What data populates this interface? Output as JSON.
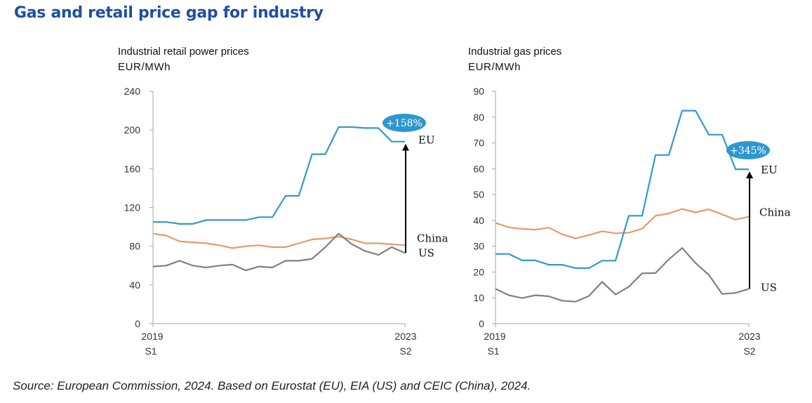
{
  "title": "Gas and retail price gap for industry",
  "source": "Source: European Commission, 2024. Based on Eurostat (EU), EIA (US) and CEIC (China), 2024.",
  "colors": {
    "EU": "#3399cc",
    "China": "#e8996a",
    "US": "#808080",
    "bubble": "#2f97cf"
  },
  "chart_data": [
    {
      "type": "line",
      "title": "Industrial retail power prices",
      "unit": "EUR/MWh",
      "ylim": [
        0,
        240
      ],
      "yticks": [
        "0",
        "40",
        "80",
        "120",
        "160",
        "200",
        "240"
      ],
      "xtick_labels": [
        {
          "line1": "2019",
          "line2": "S1"
        },
        {
          "line1": "2023",
          "line2": "S2"
        }
      ],
      "series": [
        {
          "name": "EU",
          "values": [
            105,
            105,
            103,
            103,
            107,
            107,
            107,
            107,
            110,
            110,
            132,
            132,
            175,
            175,
            203,
            203,
            202,
            202,
            188,
            188
          ]
        },
        {
          "name": "China",
          "values": [
            93,
            91,
            85,
            84,
            83,
            81,
            78,
            80,
            81,
            79,
            79,
            83,
            87,
            88,
            90,
            87,
            83,
            83,
            82,
            81
          ]
        },
        {
          "name": "US",
          "values": [
            59,
            60,
            65,
            60,
            58,
            60,
            61,
            55,
            59,
            58,
            65,
            65,
            67,
            79,
            93,
            82,
            75,
            71,
            79,
            73
          ]
        }
      ],
      "gap": {
        "label": "+158%"
      }
    },
    {
      "type": "line",
      "title": "Industrial gas prices",
      "unit": "EUR/MWh",
      "ylim": [
        0,
        90
      ],
      "yticks": [
        "0",
        "10",
        "20",
        "30",
        "40",
        "50",
        "60",
        "70",
        "80",
        "90"
      ],
      "xtick_labels": [
        {
          "line1": "2019",
          "line2": "S1"
        },
        {
          "line1": "2023",
          "line2": "S2"
        }
      ],
      "series": [
        {
          "name": "EU",
          "values": [
            27,
            27,
            24.5,
            24.5,
            22.8,
            22.8,
            21.5,
            21.5,
            24.4,
            24.4,
            41.8,
            41.8,
            65.3,
            65.3,
            82.5,
            82.5,
            73.2,
            73.2,
            59.8,
            59.8
          ]
        },
        {
          "name": "China",
          "values": [
            39,
            37.3,
            36.7,
            36.4,
            37.2,
            34.6,
            33,
            34.3,
            35.8,
            35,
            35.2,
            36.8,
            41.8,
            42.7,
            44.4,
            43.1,
            44.3,
            42.3,
            40.3,
            41.4
          ]
        },
        {
          "name": "US",
          "values": [
            13.5,
            11,
            9.9,
            11,
            10.6,
            8.9,
            8.5,
            10.7,
            16.2,
            11.3,
            14.3,
            19.5,
            19.6,
            24.9,
            29.3,
            23.5,
            18.9,
            11.5,
            11.9,
            13.5
          ]
        }
      ],
      "gap": {
        "label": "+345%"
      }
    }
  ]
}
